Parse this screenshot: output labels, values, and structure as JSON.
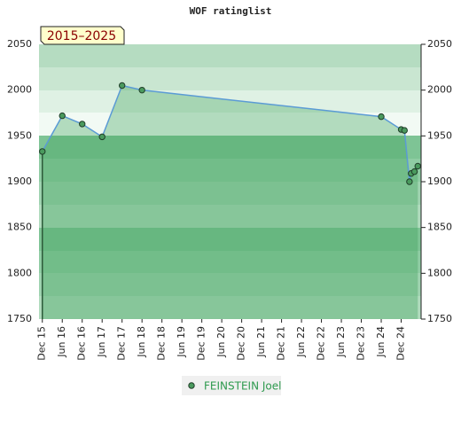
{
  "chart_data": {
    "type": "area-line",
    "title": "WOF ratinglist",
    "period": "2015–2025",
    "series": [
      {
        "name": "FEINSTEIN Joel",
        "color": "#5b9bd5",
        "marker_color": "#4a9a5e",
        "x": [
          0,
          6,
          12,
          18,
          24,
          30,
          102,
          108,
          109,
          110.5,
          111,
          112,
          113
        ],
        "values": [
          1933,
          1972,
          1963,
          1949,
          2005,
          2000,
          1971,
          1957,
          1956,
          1900,
          1909,
          1911,
          1917
        ]
      }
    ],
    "xlim": [
      -1,
      114
    ],
    "xticks": [
      {
        "value": 0,
        "label": "Dec 15"
      },
      {
        "value": 6,
        "label": "Jun 16"
      },
      {
        "value": 12,
        "label": "Dec 16"
      },
      {
        "value": 18,
        "label": "Jun 17"
      },
      {
        "value": 24,
        "label": "Dec 17"
      },
      {
        "value": 30,
        "label": "Jun 18"
      },
      {
        "value": 36,
        "label": "Dec 18"
      },
      {
        "value": 42,
        "label": "Jun 19"
      },
      {
        "value": 48,
        "label": "Dec 19"
      },
      {
        "value": 54,
        "label": "Jun 20"
      },
      {
        "value": 60,
        "label": "Dec 20"
      },
      {
        "value": 66,
        "label": "Jun 21"
      },
      {
        "value": 72,
        "label": "Dec 21"
      },
      {
        "value": 78,
        "label": "Jun 22"
      },
      {
        "value": 84,
        "label": "Dec 22"
      },
      {
        "value": 90,
        "label": "Jun 23"
      },
      {
        "value": 96,
        "label": "Dec 23"
      },
      {
        "value": 102,
        "label": "Jun 24"
      },
      {
        "value": 108,
        "label": "Dec 24"
      }
    ],
    "ylim": [
      1750,
      2050
    ],
    "yticks": [
      1750,
      1800,
      1850,
      1900,
      1950,
      2000,
      2050
    ]
  }
}
